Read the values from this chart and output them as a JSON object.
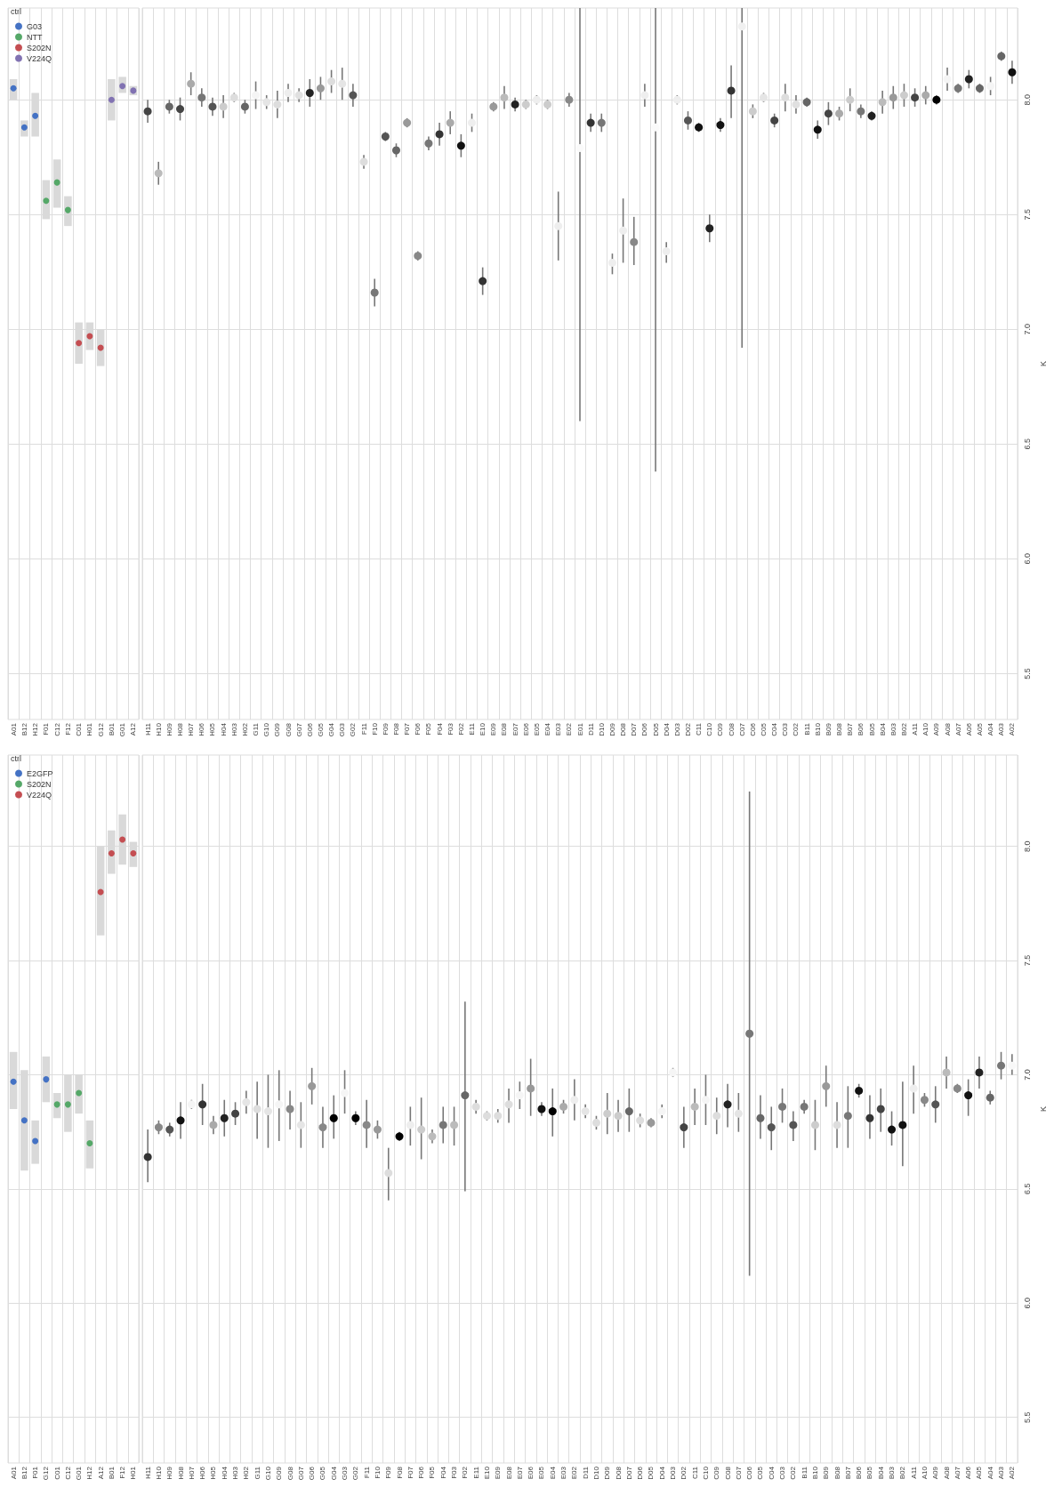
{
  "chart_data": [
    {
      "type": "scatter",
      "categories": [
        "A01",
        "B12",
        "H12",
        "F01",
        "C12",
        "F12",
        "C01",
        "H01",
        "G12",
        "B01",
        "G01",
        "A12"
      ],
      "legend": "top left",
      "legend_title": "ctrl",
      "marker": "circle",
      "grid": true,
      "tick_labels": "x",
      "ylim": [
        5.3,
        8.4
      ],
      "yticks": [
        5.5,
        6,
        6.5,
        7,
        7.5,
        8
      ],
      "series": [
        {
          "name": "G03",
          "color": "#4472c4",
          "x": [
            "A01",
            "B12",
            "H12"
          ],
          "values": [
            8.05,
            7.88,
            7.93
          ],
          "errors": [
            [
              8.0,
              8.09
            ],
            [
              7.84,
              7.91
            ],
            [
              7.84,
              8.03
            ]
          ]
        },
        {
          "name": "NTT",
          "color": "#55a868",
          "x": [
            "F01",
            "C12",
            "F12"
          ],
          "values": [
            7.56,
            7.64,
            7.52
          ],
          "errors": [
            [
              7.48,
              7.65
            ],
            [
              7.53,
              7.74
            ],
            [
              7.45,
              7.58
            ]
          ]
        },
        {
          "name": "S202N",
          "color": "#c44e52",
          "x": [
            "C01",
            "H01",
            "G12"
          ],
          "values": [
            6.94,
            6.97,
            6.92
          ],
          "errors": [
            [
              6.85,
              7.03
            ],
            [
              6.91,
              7.03
            ],
            [
              6.84,
              7.0
            ]
          ]
        },
        {
          "name": "V224Q",
          "color": "#8172b2",
          "x": [
            "B01",
            "G01",
            "A12"
          ],
          "values": [
            8.0,
            8.06,
            8.04
          ],
          "errors": [
            [
              7.91,
              8.09
            ],
            [
              8.03,
              8.1
            ],
            [
              8.02,
              8.06
            ]
          ]
        }
      ]
    },
    {
      "type": "scatter",
      "ylabel": "K",
      "marker": "circle",
      "grid": true,
      "ylim": [
        5.3,
        8.4
      ],
      "yticks": [
        5.5,
        {
          "value": 6,
          "label": "6.0"
        },
        6.5,
        {
          "value": 7,
          "label": "7.0"
        },
        7.5,
        {
          "value": 8,
          "label": "8.0"
        }
      ],
      "categories": [
        "H11",
        "H10",
        "H09",
        "H08",
        "H07",
        "H06",
        "H05",
        "H04",
        "H03",
        "H02",
        "G11",
        "G10",
        "G09",
        "G08",
        "G07",
        "G06",
        "G05",
        "G04",
        "G03",
        "G02",
        "F11",
        "F10",
        "F09",
        "F08",
        "F07",
        "F06",
        "F05",
        "F04",
        "F03",
        "F02",
        "E11",
        "E10",
        "E09",
        "E08",
        "E07",
        "E06",
        "E05",
        "E04",
        "E03",
        "E02",
        "E01",
        "D11",
        "D10",
        "D09",
        "D08",
        "D07",
        "D06",
        "D05",
        "D04",
        "D03",
        "D02",
        "C11",
        "C10",
        "C09",
        "C08",
        "C07",
        "C06",
        "C05",
        "C04",
        "C03",
        "C02",
        "B11",
        "B10",
        "B09",
        "B08",
        "B07",
        "B06",
        "B05",
        "B04",
        "B03",
        "B02",
        "A11",
        "A10",
        "A09",
        "A08",
        "A07",
        "A06",
        "A05",
        "A04",
        "A03",
        "A02"
      ],
      "values": [
        7.95,
        7.68,
        7.97,
        7.96,
        8.07,
        8.01,
        7.97,
        7.97,
        8.01,
        7.97,
        8.02,
        7.99,
        7.98,
        8.03,
        8.02,
        8.03,
        8.05,
        8.08,
        8.07,
        8.02,
        7.73,
        7.16,
        7.84,
        7.78,
        7.9,
        7.32,
        7.81,
        7.85,
        7.9,
        7.8,
        7.9,
        7.21,
        7.97,
        8.01,
        7.98,
        7.98,
        8.0,
        7.98,
        7.45,
        8.0,
        7.79,
        7.9,
        7.9,
        7.29,
        7.43,
        7.38,
        8.02,
        7.88,
        7.34,
        8.0,
        7.91,
        7.88,
        7.44,
        7.89,
        8.04,
        8.32,
        7.95,
        8.01,
        7.91,
        8.01,
        7.98,
        7.99,
        7.87,
        7.94,
        7.94,
        8.0,
        7.95,
        7.93,
        7.99,
        8.01,
        8.02,
        8.01,
        8.02,
        8.0,
        8.09,
        8.05,
        8.09,
        8.05,
        8.06,
        8.19,
        8.12
      ],
      "errors": [
        0.05,
        0.05,
        0.03,
        0.05,
        0.05,
        0.04,
        0.04,
        0.05,
        0.02,
        0.03,
        0.06,
        0.03,
        0.06,
        0.04,
        0.03,
        0.06,
        0.05,
        0.05,
        0.07,
        0.05,
        0.03,
        0.06,
        0.02,
        0.03,
        0.02,
        0.02,
        0.03,
        0.05,
        0.05,
        0.05,
        0.04,
        0.06,
        0.02,
        0.05,
        0.03,
        0.02,
        0.02,
        0.02,
        [
          7.3,
          7.6
        ],
        0.03,
        [
          6.6,
          8.4
        ],
        0.04,
        0.04,
        [
          7.24,
          7.33
        ],
        [
          7.29,
          7.57
        ],
        [
          7.28,
          7.49
        ],
        0.05,
        [
          6.38,
          8.4
        ],
        [
          7.29,
          7.38
        ],
        0.02,
        0.04,
        0.02,
        0.06,
        0.03,
        [
          7.92,
          8.15
        ],
        [
          6.92,
          8.4
        ],
        0.03,
        0.02,
        0.03,
        0.06,
        0.04,
        0.02,
        0.04,
        0.05,
        0.03,
        0.05,
        0.03,
        0.02,
        0.05,
        0.05,
        0.05,
        0.04,
        0.04,
        0.02,
        0.05,
        0.02,
        0.04,
        0.02,
        0.04,
        0.02,
        0.05
      ],
      "colors": [
        "#444444",
        "#bbbbbb",
        "#666666",
        "#444444",
        "#aaaaaa",
        "#777777",
        "#555555",
        "#cccccc",
        "#dddddd",
        "#666666",
        "#f5f5f5",
        "#e5e5e5",
        "#dddddd",
        "#eeeeee",
        "#e0e0e0",
        "#222222",
        "#999999",
        "#dddddd",
        "#e5e5e5",
        "#555555",
        "#dddddd",
        "#777777",
        "#555555",
        "#666666",
        "#999999",
        "#888888",
        "#777777",
        "#333333",
        "#aaaaaa",
        "#111111",
        "#eeeeee",
        "#333333",
        "#999999",
        "#bbbbbb",
        "#222222",
        "#cccccc",
        "#eeeeee",
        "#cccccc",
        "#eeeeee",
        "#888888",
        "#fafafa",
        "#333333",
        "#777777",
        "#eeeeee",
        "#eeeeee",
        "#888888",
        "#eeeeee",
        "#fafafa",
        "#eeeeee",
        "#eeeeee",
        "#555555",
        "#111111",
        "#222222",
        "#111111",
        "#333333",
        "#f0f0f0",
        "#cccccc",
        "#e5e5e5",
        "#444444",
        "#dddddd",
        "#e0e0e0",
        "#666666",
        "#111111",
        "#444444",
        "#aaaaaa",
        "#cccccc",
        "#777777",
        "#222222",
        "#bbbbbb",
        "#999999",
        "#cccccc",
        "#444444",
        "#aaaaaa",
        "#000000",
        "#f5f5f5",
        "#777777",
        "#222222",
        "#666666",
        "#f5f5f5",
        "#666666",
        "#111111"
      ]
    },
    {
      "type": "scatter",
      "categories": [
        "A01",
        "B12",
        "F01",
        "G12",
        "C01",
        "C12",
        "G01",
        "H12",
        "A12",
        "B01",
        "F12",
        "H01"
      ],
      "legend": "top left",
      "legend_title": "ctrl",
      "marker": "circle",
      "grid": true,
      "tick_labels": "x",
      "ylim": [
        5.3,
        8.4
      ],
      "yticks": [
        5.5,
        6,
        6.5,
        7,
        7.5,
        8
      ],
      "series": [
        {
          "name": "E2GFP",
          "color": "#4472c4",
          "x": [
            "A01",
            "B12",
            "F01",
            "G12"
          ],
          "values": [
            6.97,
            6.8,
            6.71,
            6.98
          ],
          "errors": [
            [
              6.85,
              7.1
            ],
            [
              6.58,
              7.02
            ],
            [
              6.61,
              6.8
            ],
            [
              6.88,
              7.08
            ]
          ]
        },
        {
          "name": "S202N",
          "color": "#55a868",
          "x": [
            "C01",
            "C12",
            "G01",
            "H12"
          ],
          "values": [
            6.87,
            6.87,
            6.92,
            6.7
          ],
          "errors": [
            [
              6.81,
              6.92
            ],
            [
              6.75,
              7.0
            ],
            [
              6.83,
              7.0
            ],
            [
              6.59,
              6.8
            ]
          ]
        },
        {
          "name": "V224Q",
          "color": "#c44e52",
          "x": [
            "A12",
            "B01",
            "F12",
            "H01"
          ],
          "values": [
            7.8,
            7.97,
            8.03,
            7.97
          ],
          "errors": [
            [
              7.61,
              8.0
            ],
            [
              7.88,
              8.07
            ],
            [
              7.92,
              8.14
            ],
            [
              7.91,
              8.02
            ]
          ]
        }
      ]
    },
    {
      "type": "scatter",
      "ylabel": "K",
      "marker": "circle",
      "grid": true,
      "ylim": [
        5.3,
        8.4
      ],
      "yticks": [
        5.5,
        {
          "value": 6,
          "label": "6.0"
        },
        6.5,
        {
          "value": 7,
          "label": "7.0"
        },
        7.5,
        {
          "value": 8,
          "label": "8.0"
        }
      ],
      "categories": [
        "H11",
        "H10",
        "H09",
        "H08",
        "H07",
        "H06",
        "H05",
        "H04",
        "H03",
        "H02",
        "G11",
        "G10",
        "G09",
        "G08",
        "G07",
        "G06",
        "G05",
        "G04",
        "G03",
        "G02",
        "F11",
        "F10",
        "F09",
        "F08",
        "F07",
        "F06",
        "F05",
        "F04",
        "F03",
        "F02",
        "E11",
        "E10",
        "E09",
        "E08",
        "E07",
        "E06",
        "E05",
        "E04",
        "E03",
        "E02",
        "D11",
        "D10",
        "D09",
        "D08",
        "D07",
        "D06",
        "D05",
        "D04",
        "D03",
        "D02",
        "C11",
        "C10",
        "C09",
        "C08",
        "C07",
        "C06",
        "C05",
        "C04",
        "C03",
        "C02",
        "B11",
        "B10",
        "B09",
        "B08",
        "B07",
        "B06",
        "B05",
        "B04",
        "B03",
        "B02",
        "A11",
        "A10",
        "A09",
        "A08",
        "A07",
        "A06",
        "A05",
        "A04",
        "A03",
        "A02"
      ],
      "values": [
        6.64,
        6.77,
        6.76,
        6.8,
        6.87,
        6.87,
        6.78,
        6.81,
        6.83,
        6.88,
        6.85,
        6.84,
        6.87,
        6.85,
        6.78,
        6.95,
        6.77,
        6.81,
        6.92,
        6.81,
        6.78,
        6.76,
        6.57,
        6.73,
        6.78,
        6.76,
        6.73,
        6.78,
        6.78,
        6.91,
        6.86,
        6.82,
        6.82,
        6.87,
        6.91,
        6.94,
        6.85,
        6.84,
        6.86,
        6.89,
        6.84,
        6.79,
        6.83,
        6.82,
        6.84,
        6.8,
        6.79,
        6.84,
        7.01,
        6.77,
        6.86,
        6.89,
        6.82,
        6.87,
        6.83,
        7.18,
        6.81,
        6.77,
        6.86,
        6.78,
        6.86,
        6.78,
        6.95,
        6.78,
        6.82,
        6.93,
        6.81,
        6.85,
        6.76,
        6.78,
        6.94,
        6.89,
        6.87,
        7.01,
        6.94,
        6.91,
        7.01,
        6.9,
        7.04,
        7.04
      ],
      "errors": [
        [
          6.53,
          6.76
        ],
        0.03,
        0.03,
        [
          6.72,
          6.88
        ],
        0.02,
        [
          6.78,
          6.96
        ],
        0.04,
        [
          6.73,
          6.89
        ],
        0.05,
        0.05,
        [
          6.72,
          6.97
        ],
        [
          6.68,
          7.0
        ],
        [
          6.71,
          7.02
        ],
        [
          6.76,
          6.93
        ],
        [
          6.68,
          6.88
        ],
        [
          6.87,
          7.03
        ],
        [
          6.68,
          6.86
        ],
        [
          6.72,
          6.91
        ],
        [
          6.83,
          7.02
        ],
        0.03,
        [
          6.68,
          6.89
        ],
        0.04,
        [
          6.45,
          6.68
        ],
        0.02,
        [
          6.69,
          6.86
        ],
        [
          6.63,
          6.9
        ],
        0.03,
        [
          6.7,
          6.86
        ],
        [
          6.69,
          6.86
        ],
        [
          6.49,
          7.32
        ],
        0.03,
        0.02,
        0.03,
        [
          6.79,
          6.94
        ],
        [
          6.85,
          6.97
        ],
        [
          6.82,
          7.07
        ],
        0.03,
        [
          6.73,
          6.94
        ],
        0.03,
        [
          6.8,
          6.98
        ],
        0.03,
        0.03,
        [
          6.74,
          6.92
        ],
        [
          6.75,
          6.89
        ],
        [
          6.75,
          6.94
        ],
        0.03,
        0.02,
        0.03,
        0.02,
        [
          6.68,
          6.86
        ],
        [
          6.78,
          6.94
        ],
        [
          6.78,
          7.0
        ],
        [
          6.74,
          6.9
        ],
        [
          6.77,
          6.96
        ],
        [
          6.75,
          6.92
        ],
        [
          6.12,
          8.24
        ],
        [
          6.72,
          6.91
        ],
        [
          6.67,
          6.86
        ],
        [
          6.79,
          6.94
        ],
        [
          6.71,
          6.84
        ],
        0.03,
        [
          6.67,
          6.89
        ],
        [
          6.86,
          7.04
        ],
        [
          6.68,
          6.88
        ],
        [
          6.68,
          6.95
        ],
        0.03,
        [
          6.72,
          6.91
        ],
        [
          6.75,
          6.94
        ],
        [
          6.69,
          6.84
        ],
        [
          6.6,
          6.97
        ],
        [
          6.83,
          7.04
        ],
        0.03,
        [
          6.79,
          6.95
        ],
        [
          6.94,
          7.08
        ],
        0.02,
        [
          6.82,
          6.98
        ],
        [
          6.94,
          7.08
        ],
        0.03,
        [
          6.98,
          7.1
        ],
        [
          7.0,
          7.09
        ]
      ],
      "colors": [
        "#333333",
        "#888888",
        "#555555",
        "#111111",
        "#f5f5f5",
        "#333333",
        "#aaaaaa",
        "#222222",
        "#444444",
        "#e5e5e5",
        "#dddddd",
        "#e5e5e5",
        "#f5f5f5",
        "#888888",
        "#e5e5e5",
        "#999999",
        "#888888",
        "#000000",
        "#f5f5f5",
        "#000000",
        "#888888",
        "#999999",
        "#dddddd",
        "#000000",
        "#eeeeee",
        "#cccccc",
        "#bbbbbb",
        "#777777",
        "#bbbbbb",
        "#666666",
        "#dddddd",
        "#dddddd",
        "#dddddd",
        "#dddddd",
        "#f5f5f5",
        "#999999",
        "#111111",
        "#000000",
        "#aaaaaa",
        "#eeeeee",
        "#e5e5e5",
        "#dddddd",
        "#cccccc",
        "#cccccc",
        "#666666",
        "#dddddd",
        "#999999",
        "#f5f5f5",
        "#f5f5f5",
        "#444444",
        "#bbbbbb",
        "#f5f5f5",
        "#dddddd",
        "#222222",
        "#e5e5e5",
        "#777777",
        "#666666",
        "#555555",
        "#777777",
        "#555555",
        "#777777",
        "#cccccc",
        "#999999",
        "#dddddd",
        "#777777",
        "#111111",
        "#333333",
        "#444444",
        "#111111",
        "#111111",
        "#eeeeee",
        "#888888",
        "#555555",
        "#bbbbbb",
        "#888888",
        "#111111",
        "#222222",
        "#666666",
        "#777777",
        "#f8f8f8"
      ]
    }
  ]
}
